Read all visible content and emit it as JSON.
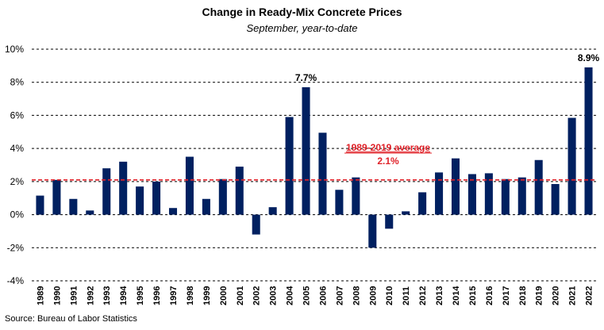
{
  "chart_data": {
    "type": "bar",
    "title": "Change in Ready-Mix Concrete Prices",
    "subtitle": "September, year-to-date",
    "source": "Source: Bureau of Labor Statistics",
    "categories": [
      "1989",
      "1990",
      "1991",
      "1992",
      "1993",
      "1994",
      "1995",
      "1996",
      "1997",
      "1998",
      "1999",
      "2000",
      "2001",
      "2002",
      "2003",
      "2004",
      "2005",
      "2006",
      "2007",
      "2008",
      "2009",
      "2010",
      "2011",
      "2012",
      "2013",
      "2014",
      "2015",
      "2016",
      "2017",
      "2018",
      "2019",
      "2020",
      "2021",
      "2022"
    ],
    "values": [
      1.15,
      2.1,
      0.95,
      0.25,
      2.8,
      3.2,
      1.7,
      2.0,
      0.4,
      3.5,
      0.95,
      2.15,
      2.9,
      -1.2,
      0.45,
      5.9,
      7.7,
      4.95,
      1.5,
      2.25,
      -2.0,
      -0.85,
      0.2,
      1.35,
      2.55,
      3.4,
      2.45,
      2.5,
      2.15,
      2.25,
      3.3,
      1.85,
      5.85,
      8.9
    ],
    "ylim": [
      -4,
      10
    ],
    "yticks": [
      "-4%",
      "-2%",
      "0%",
      "2%",
      "4%",
      "6%",
      "8%",
      "10%"
    ],
    "ytick_values": [
      -4,
      -2,
      0,
      2,
      4,
      6,
      8,
      10
    ],
    "grid": true,
    "bar_color": "#002060",
    "average": {
      "value": 2.1,
      "label_line1": "1989-2019 average",
      "label_line2": "2.1%",
      "color": "#e0232a"
    },
    "data_labels": [
      {
        "category": "2005",
        "text": "7.7%"
      },
      {
        "category": "2022",
        "text": "8.9%"
      }
    ]
  }
}
